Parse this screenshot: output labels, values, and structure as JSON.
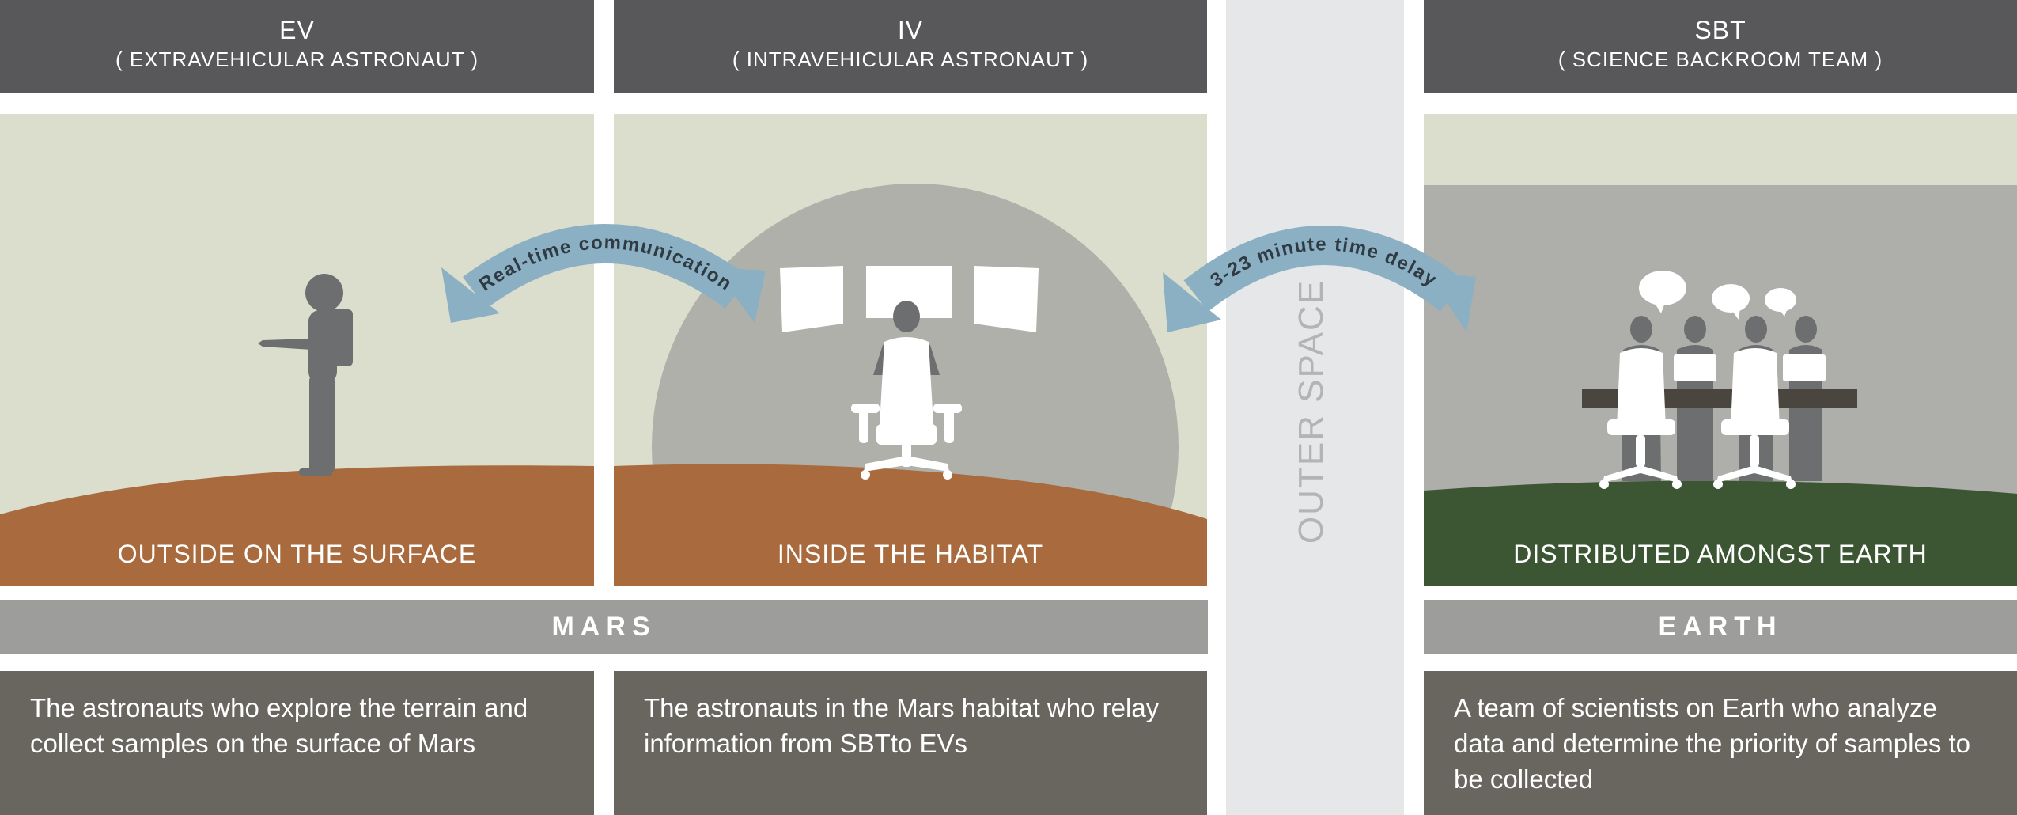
{
  "columns": {
    "ev": {
      "abbr": "EV",
      "full": "( EXTRAVEHICULAR  ASTRONAUT )",
      "location": "OUTSIDE ON THE SURFACE",
      "description": "The astronauts who explore the terrain and collect samples on the surface of Mars"
    },
    "iv": {
      "abbr": "IV",
      "full": "( INTRAVEHICULAR  ASTRONAUT )",
      "location": "INSIDE THE HABITAT",
      "description": "The astronauts in the Mars habitat who relay information from SBTto EVs"
    },
    "sbt": {
      "abbr": "SBT",
      "full": "( SCIENCE BACKROOM TEAM )",
      "location": "DISTRIBUTED AMONGST EARTH",
      "description": "A team of scientists on Earth who analyze data and determine the priority of samples to be collected"
    }
  },
  "bands": {
    "mars": "MARS",
    "earth": "EARTH"
  },
  "outer_space": "OUTER SPACE",
  "arrows": {
    "ev_iv": "Real-time communication",
    "iv_sbt": "3-23 minute time delay"
  },
  "colors": {
    "header": "#58585b",
    "sky": "#dcdecd",
    "mars_ground": "#a96a3d",
    "earth_ground": "#3c5634",
    "backroom_wall": "#aeaeaa",
    "band": "#9d9d9c",
    "description": "#68665f",
    "outer_space": "#e6e7e8",
    "arrow": "#8bb0c3"
  },
  "icons": {
    "astronaut": "astronaut-icon",
    "monitors": "monitor-icon",
    "office_chair": "office-chair-icon",
    "speech_bubble": "speech-bubble-icon",
    "scientist": "scientist-icon"
  }
}
